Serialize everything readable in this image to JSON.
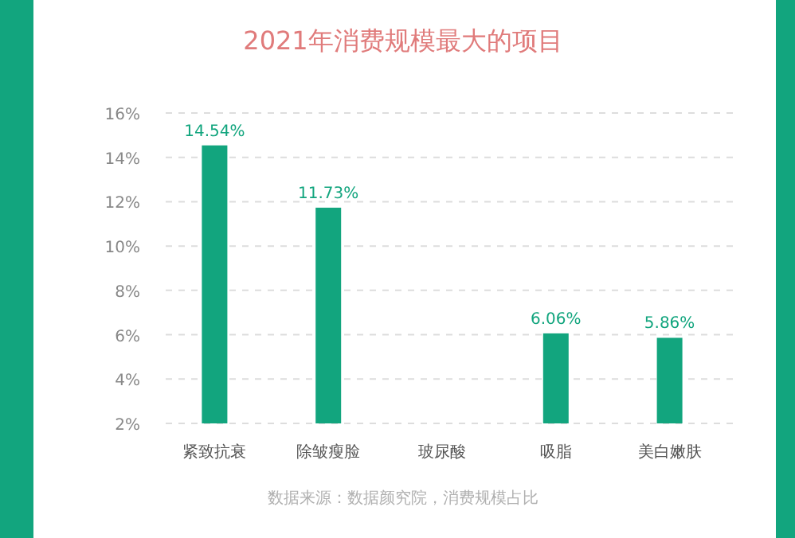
{
  "chart_data": {
    "type": "bar",
    "title": "2021年消费规模最大的项目",
    "categories": [
      "紧致抗衰",
      "除皱瘦脸",
      "玻尿酸",
      "吸脂",
      "美白嫩肤"
    ],
    "values": [
      14.54,
      11.73,
      null,
      6.06,
      5.86
    ],
    "value_labels": [
      "14.54%",
      "11.73%",
      null,
      "6.06%",
      "5.86%"
    ],
    "color": "#12a57e",
    "ylim": [
      2,
      16
    ],
    "yticks": [
      {
        "value": 2,
        "label": "2%"
      },
      {
        "value": 4,
        "label": "4%"
      },
      {
        "value": 6,
        "label": "6%"
      },
      {
        "value": 8,
        "label": "8%"
      },
      {
        "value": 10,
        "label": "10%"
      },
      {
        "value": 12,
        "label": "12%"
      },
      {
        "value": 14,
        "label": "14%"
      },
      {
        "value": 16,
        "label": "16%"
      }
    ],
    "grid": "y",
    "annotations": [
      "数据来源：数据颜究院，消费规模占比"
    ]
  }
}
